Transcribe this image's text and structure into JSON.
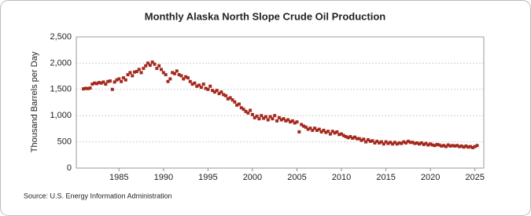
{
  "chart_data": {
    "type": "scatter",
    "title": "Monthly Alaska North Slope Crude Oil Production",
    "y_label": "Thousand Barrels per Day",
    "source": "Source: U.S. Energy Information Administration",
    "xlim": [
      1980.2,
      2026
    ],
    "xticks": [
      1985,
      1990,
      1995,
      2000,
      2005,
      2010,
      2015,
      2020,
      2025
    ],
    "ylim": [
      0,
      2500
    ],
    "yticks": [
      0,
      500,
      {
        "value": 1000,
        "label": "1,000"
      },
      {
        "value": 1500,
        "label": "1,500"
      },
      {
        "value": 2000,
        "label": "2,000"
      },
      {
        "value": 2500,
        "label": "2,500"
      }
    ],
    "grid": true,
    "series": [
      {
        "color": "#a52a1e",
        "x": [
          1981,
          1981.25,
          1981.5,
          1981.75,
          1982,
          1982.25,
          1982.5,
          1982.75,
          1983,
          1983.25,
          1983.5,
          1983.75,
          1984,
          1984.25,
          1984.5,
          1984.75,
          1985,
          1985.25,
          1985.5,
          1985.75,
          1986,
          1986.25,
          1986.5,
          1986.75,
          1987,
          1987.25,
          1987.5,
          1987.75,
          1988,
          1988.25,
          1988.5,
          1988.75,
          1989,
          1989.25,
          1989.5,
          1989.75,
          1990,
          1990.25,
          1990.5,
          1990.75,
          1991,
          1991.25,
          1991.5,
          1991.75,
          1992,
          1992.25,
          1992.5,
          1992.75,
          1993,
          1993.25,
          1993.5,
          1993.75,
          1994,
          1994.25,
          1994.5,
          1994.75,
          1995,
          1995.25,
          1995.5,
          1995.75,
          1996,
          1996.25,
          1996.5,
          1996.75,
          1997,
          1997.25,
          1997.5,
          1997.75,
          1998,
          1998.25,
          1998.5,
          1998.75,
          1999,
          1999.25,
          1999.5,
          1999.75,
          2000,
          2000.25,
          2000.5,
          2000.75,
          2001,
          2001.25,
          2001.5,
          2001.75,
          2002,
          2002.25,
          2002.5,
          2002.75,
          2003,
          2003.25,
          2003.5,
          2003.75,
          2004,
          2004.25,
          2004.5,
          2004.75,
          2005,
          2005.25,
          2005.5,
          2005.75,
          2006,
          2006.25,
          2006.5,
          2006.75,
          2007,
          2007.25,
          2007.5,
          2007.75,
          2008,
          2008.25,
          2008.5,
          2008.75,
          2009,
          2009.25,
          2009.5,
          2009.75,
          2010,
          2010.25,
          2010.5,
          2010.75,
          2011,
          2011.25,
          2011.5,
          2011.75,
          2012,
          2012.25,
          2012.5,
          2012.75,
          2013,
          2013.25,
          2013.5,
          2013.75,
          2014,
          2014.25,
          2014.5,
          2014.75,
          2015,
          2015.25,
          2015.5,
          2015.75,
          2016,
          2016.25,
          2016.5,
          2016.75,
          2017,
          2017.25,
          2017.5,
          2017.75,
          2018,
          2018.25,
          2018.5,
          2018.75,
          2019,
          2019.25,
          2019.5,
          2019.75,
          2020,
          2020.25,
          2020.5,
          2020.75,
          2021,
          2021.25,
          2021.5,
          2021.75,
          2022,
          2022.25,
          2022.5,
          2022.75,
          2023,
          2023.25,
          2023.5,
          2023.75,
          2024,
          2024.25,
          2024.5,
          2024.75,
          2025,
          2025.25
        ],
        "values": [
          1510,
          1520,
          1515,
          1525,
          1600,
          1620,
          1610,
          1630,
          1620,
          1640,
          1600,
          1650,
          1660,
          1500,
          1640,
          1680,
          1700,
          1650,
          1720,
          1680,
          1780,
          1820,
          1760,
          1830,
          1840,
          1880,
          1820,
          1900,
          1950,
          2000,
          1960,
          2020,
          1980,
          1900,
          1950,
          1880,
          1820,
          1780,
          1650,
          1700,
          1820,
          1800,
          1850,
          1780,
          1760,
          1700,
          1740,
          1720,
          1650,
          1600,
          1620,
          1560,
          1580,
          1540,
          1600,
          1520,
          1500,
          1560,
          1480,
          1450,
          1480,
          1420,
          1450,
          1400,
          1380,
          1320,
          1340,
          1300,
          1260,
          1200,
          1220,
          1150,
          1120,
          1080,
          1050,
          1100,
          1020,
          960,
          990,
          940,
          1000,
          950,
          980,
          920,
          980,
          940,
          1000,
          900,
          960,
          920,
          940,
          900,
          920,
          880,
          900,
          860,
          880,
          690,
          830,
          800,
          780,
          740,
          760,
          720,
          760,
          720,
          740,
          690,
          720,
          680,
          700,
          650,
          700,
          670,
          690,
          640,
          650,
          620,
          600,
          580,
          600,
          570,
          590,
          560,
          560,
          530,
          550,
          500,
          540,
          510,
          520,
          480,
          510,
          480,
          500,
          460,
          500,
          470,
          490,
          460,
          490,
          460,
          480,
          470,
          500,
          480,
          510,
          490,
          490,
          470,
          480,
          460,
          480,
          450,
          470,
          440,
          460,
          440,
          430,
          450,
          440,
          420,
          430,
          410,
          440,
          420,
          430,
          420,
          430,
          410,
          420,
          400,
          420,
          400,
          410,
          390,
          410,
          430
        ]
      }
    ]
  }
}
